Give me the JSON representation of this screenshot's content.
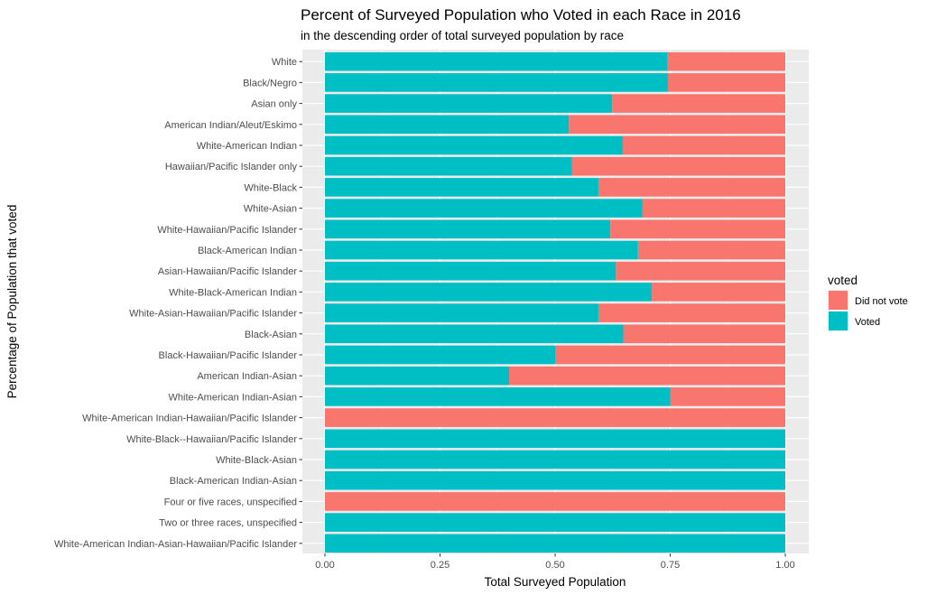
{
  "chart_data": {
    "type": "bar",
    "orientation": "horizontal",
    "stacked": true,
    "title": "Percent of Surveyed Population who Voted in each Race in 2016",
    "subtitle": "in the descending order of total surveyed population by race",
    "xlabel": "Total Surveyed Population",
    "ylabel": "Percentage of Population that voted",
    "xlim": [
      0,
      1
    ],
    "x_ticks": [
      "0.00",
      "0.25",
      "0.50",
      "0.75",
      "1.00"
    ],
    "grid": true,
    "legend": {
      "title": "voted",
      "position": "right",
      "entries": [
        {
          "label": "Did not vote",
          "color": "#F8766D"
        },
        {
          "label": "Voted",
          "color": "#00BFC4"
        }
      ]
    },
    "categories": [
      "White",
      "Black/Negro",
      "Asian only",
      "American Indian/Aleut/Eskimo",
      "White-American Indian",
      "Hawaiian/Pacific Islander only",
      "White-Black",
      "White-Asian",
      "White-Hawaiian/Pacific Islander",
      "Black-American Indian",
      "Asian-Hawaiian/Pacific Islander",
      "White-Black-American Indian",
      "White-Asian-Hawaiian/Pacific Islander",
      "Black-Asian",
      "Black-Hawaiian/Pacific Islander",
      "American Indian-Asian",
      "White-American Indian-Asian",
      "White-American Indian-Hawaiian/Pacific Islander",
      "White-Black--Hawaiian/Pacific Islander",
      "White-Black-Asian",
      "Black-American Indian-Asian",
      "Four or five races, unspecified",
      "Two or three races, unspecified",
      "White-American Indian-Asian-Hawaiian/Pacific Islander"
    ],
    "series": [
      {
        "name": "Voted",
        "color": "#00BFC4",
        "values": [
          0.744,
          0.745,
          0.624,
          0.53,
          0.647,
          0.537,
          0.594,
          0.69,
          0.62,
          0.68,
          0.632,
          0.71,
          0.594,
          0.648,
          0.5,
          0.4,
          0.75,
          0.0,
          1.0,
          1.0,
          1.0,
          0.0,
          1.0,
          1.0
        ]
      },
      {
        "name": "Did not vote",
        "color": "#F8766D",
        "values": [
          0.256,
          0.255,
          0.376,
          0.47,
          0.353,
          0.463,
          0.406,
          0.31,
          0.38,
          0.32,
          0.368,
          0.29,
          0.406,
          0.352,
          0.5,
          0.6,
          0.25,
          1.0,
          0.0,
          0.0,
          0.0,
          1.0,
          0.0,
          0.0
        ]
      }
    ]
  }
}
